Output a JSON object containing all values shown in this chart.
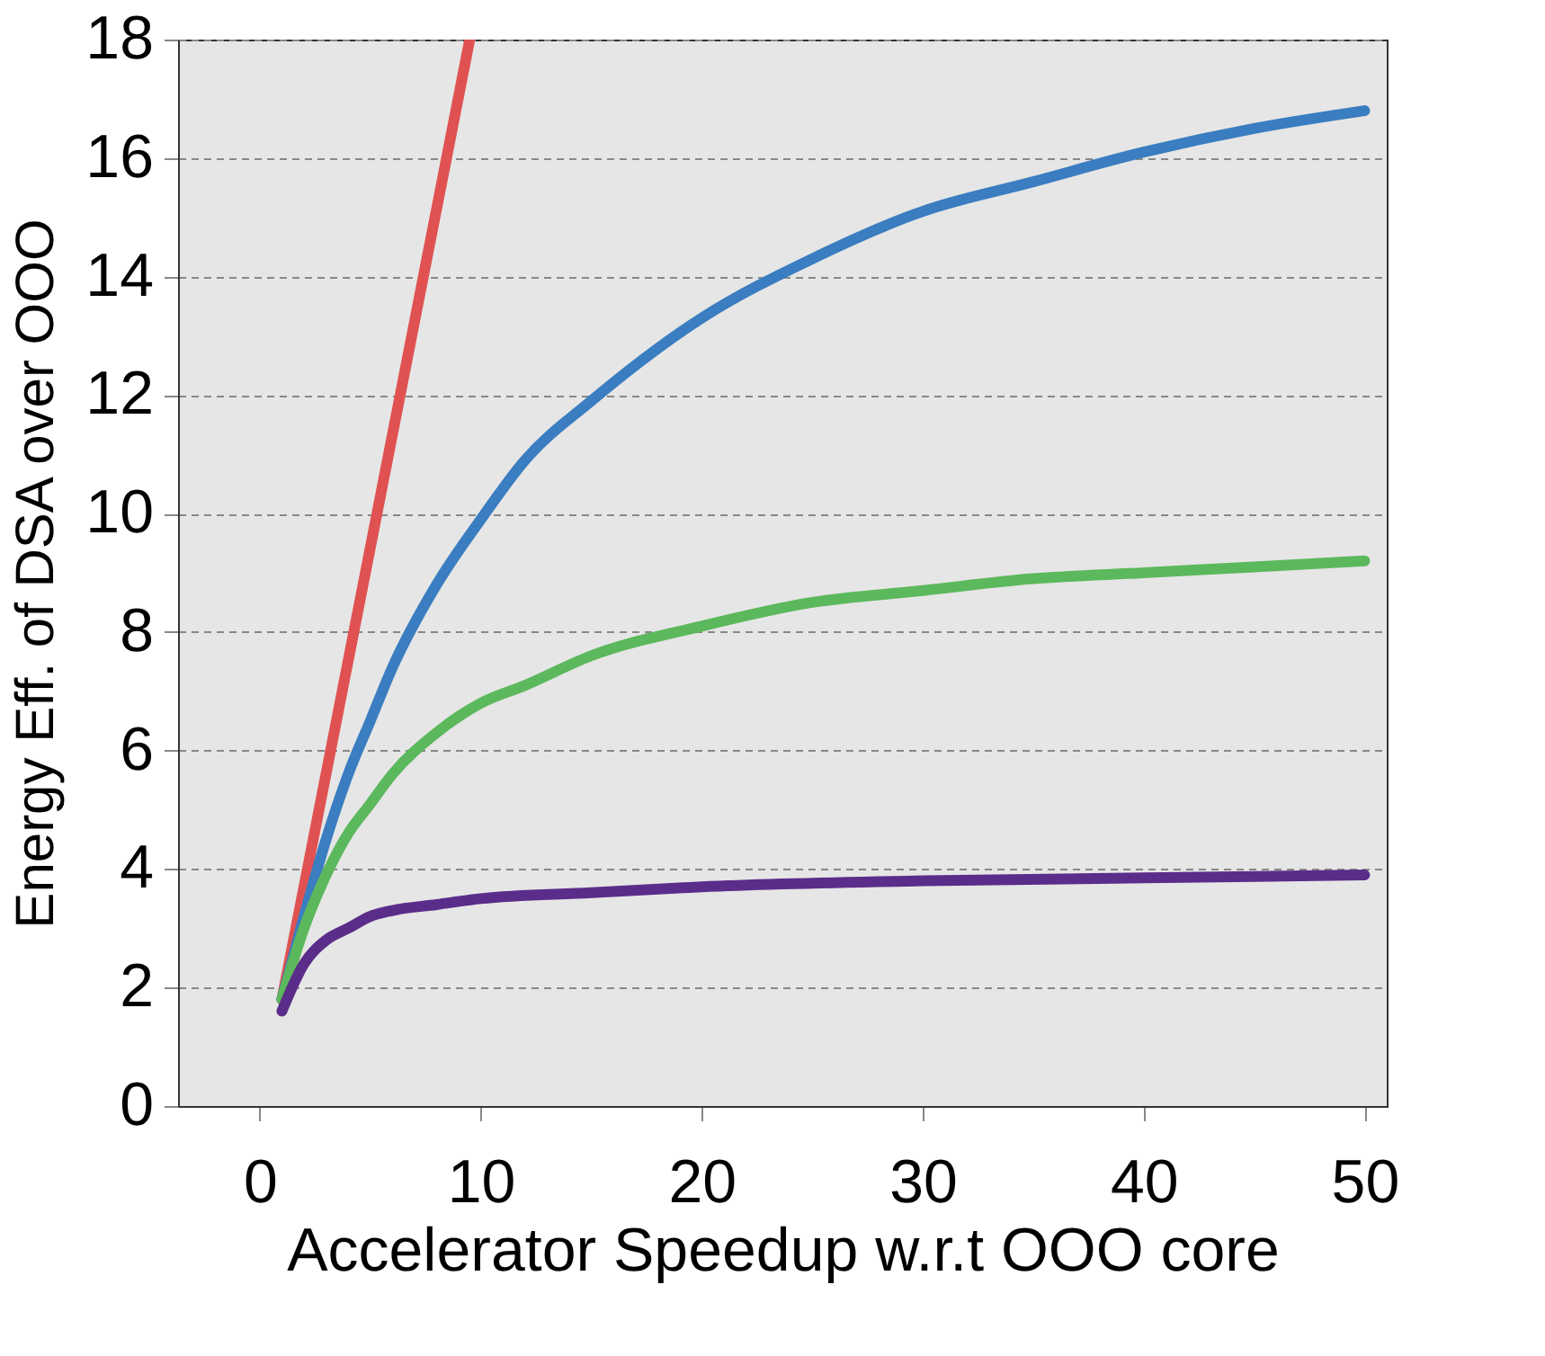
{
  "chart_data": {
    "type": "line",
    "xlabel": "Accelerator Speedup w.r.t OOO core",
    "ylabel": "Energy Eff. of DSA over OOO",
    "xlim": [
      -3.7,
      51
    ],
    "ylim": [
      0,
      18
    ],
    "xticks": [
      0,
      10,
      20,
      30,
      40,
      50
    ],
    "yticks": [
      0,
      2,
      4,
      6,
      8,
      10,
      12,
      14,
      16,
      18
    ],
    "grid": "y",
    "marker": "none",
    "line_style": "solid",
    "series": [
      {
        "color": "#e05252",
        "x": [
          1,
          9.5
        ],
        "values": [
          1.8,
          18
        ]
      },
      {
        "color": "#3a7dc0",
        "x": [
          1,
          2,
          3,
          4,
          5,
          6,
          8,
          10,
          12,
          15,
          20,
          25,
          30,
          35,
          40,
          45,
          50
        ],
        "values": [
          1.8,
          3.2,
          4.5,
          5.6,
          6.5,
          7.4,
          8.8,
          9.9,
          10.9,
          11.9,
          13.3,
          14.3,
          15.1,
          15.6,
          16.1,
          16.5,
          16.8
        ]
      },
      {
        "color": "#5cb85c",
        "x": [
          1,
          2,
          3,
          4,
          5,
          6,
          8,
          10,
          12,
          15,
          20,
          25,
          30,
          35,
          40,
          45,
          50
        ],
        "values": [
          1.8,
          3.0,
          3.9,
          4.6,
          5.1,
          5.6,
          6.3,
          6.8,
          7.1,
          7.6,
          8.1,
          8.5,
          8.7,
          8.9,
          9.0,
          9.1,
          9.2
        ]
      },
      {
        "color": "#5b2d8a",
        "x": [
          1,
          2,
          3,
          4,
          5,
          6,
          8,
          10,
          15,
          20,
          30,
          40,
          50
        ],
        "values": [
          1.6,
          2.4,
          2.8,
          3.0,
          3.2,
          3.3,
          3.4,
          3.5,
          3.6,
          3.7,
          3.8,
          3.85,
          3.9
        ]
      }
    ]
  }
}
